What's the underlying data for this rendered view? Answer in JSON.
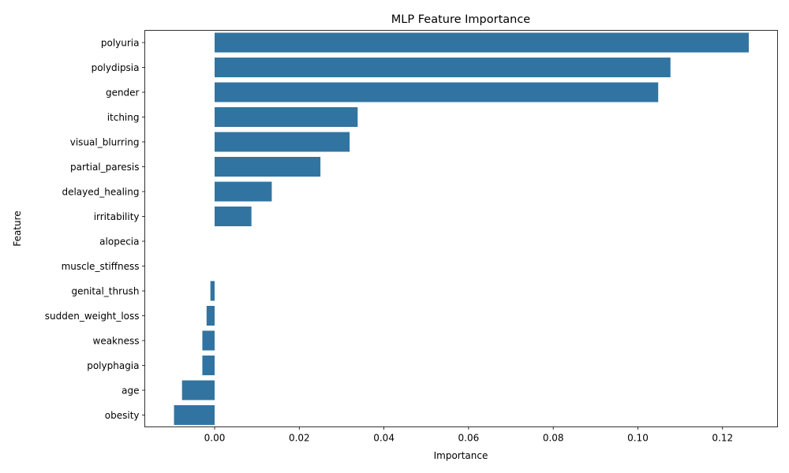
{
  "chart_data": {
    "type": "bar",
    "orientation": "horizontal",
    "title": "MLP Feature Importance",
    "xlabel": "Importance",
    "ylabel": "Feature",
    "xlim": [
      -0.0165,
      0.133
    ],
    "xticks": [
      0.0,
      0.02,
      0.04,
      0.06,
      0.08,
      0.1,
      0.12
    ],
    "xtick_labels": [
      "0.00",
      "0.02",
      "0.04",
      "0.06",
      "0.08",
      "0.10",
      "0.12"
    ],
    "bar_color": "#3274a1",
    "grid": false,
    "categories": [
      "polyuria",
      "polydipsia",
      "gender",
      "itching",
      "visual_blurring",
      "partial_paresis",
      "delayed_healing",
      "irritability",
      "alopecia",
      "muscle_stiffness",
      "genital_thrush",
      "sudden_weight_loss",
      "weakness",
      "polyphagia",
      "age",
      "obesity"
    ],
    "values": [
      0.1262,
      0.1077,
      0.1048,
      0.0338,
      0.0319,
      0.025,
      0.0135,
      0.0087,
      0.0,
      0.0,
      -0.001,
      -0.0019,
      -0.0029,
      -0.0029,
      -0.0077,
      -0.0096
    ]
  }
}
